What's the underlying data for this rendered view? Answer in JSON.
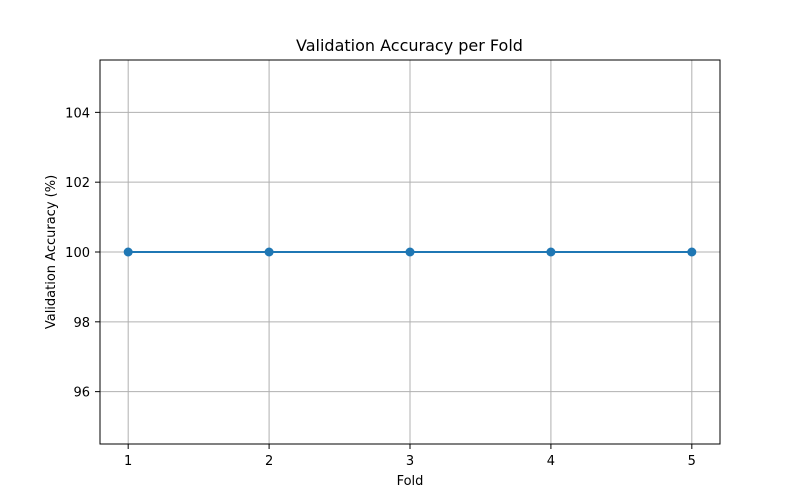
{
  "chart_data": {
    "type": "line",
    "title": "Validation Accuracy per Fold",
    "xlabel": "Fold",
    "ylabel": "Validation Accuracy (%)",
    "x": [
      1,
      2,
      3,
      4,
      5
    ],
    "series": [
      {
        "values": [
          100,
          100,
          100,
          100,
          100
        ],
        "color": "#1f77b4",
        "marker": "circle"
      }
    ],
    "xlim": [
      0.8,
      5.2
    ],
    "ylim": [
      94.5,
      105.5
    ],
    "xticks": [
      1,
      2,
      3,
      4,
      5
    ],
    "yticks": [
      96,
      98,
      100,
      102,
      104
    ],
    "grid": true,
    "legend": false
  }
}
